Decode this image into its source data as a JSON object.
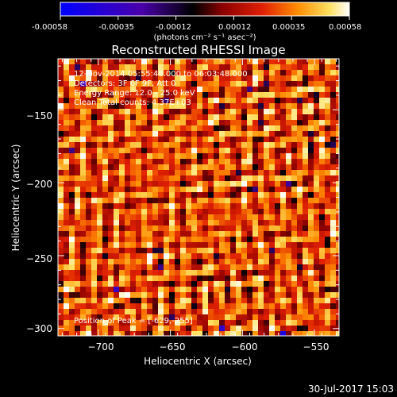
{
  "colorbar": {
    "tick_labels": [
      "-0.00058",
      "-0.00035",
      "-0.00012",
      "0.00012",
      "0.00035",
      "0.00058"
    ],
    "range": [
      -0.00058,
      0.00058
    ],
    "unit_label": "(photons cm⁻² s⁻¹ asec⁻²)",
    "colors": [
      "#0000ff",
      "#4a00aa",
      "#000000",
      "#8a0000",
      "#e02000",
      "#ff8c00",
      "#ffe060",
      "#ffffff"
    ]
  },
  "title": "Reconstructed RHESSI Image",
  "annotations": {
    "time": "12-Nov-2014 05:55:48.000 to 06:03:48.000",
    "detectors": "Detectors: 3F 6F 9F, Att 0",
    "energy": "Energy Range: 12.0 - 25.0 keV",
    "method": "Clean    Total counts: 4.37E+03",
    "peak": "Position of Peak = [-629,-255]"
  },
  "axes": {
    "xlabel": "Heliocentric X (arcsec)",
    "ylabel": "Heliocentric Y (arcsec)",
    "xlim": [
      -728,
      -533
    ],
    "ylim": [
      -305,
      -115
    ],
    "xticks": [
      -700,
      -650,
      -600,
      -550
    ],
    "yticks": [
      -150,
      -200,
      -250,
      -300
    ],
    "xtick_labels": [
      "−700",
      "−650",
      "−600",
      "−550"
    ],
    "ytick_labels": [
      "−150",
      "−200",
      "−250",
      "−300"
    ]
  },
  "footer": {
    "timestamp": "30-Jul-2017 15:03"
  }
}
